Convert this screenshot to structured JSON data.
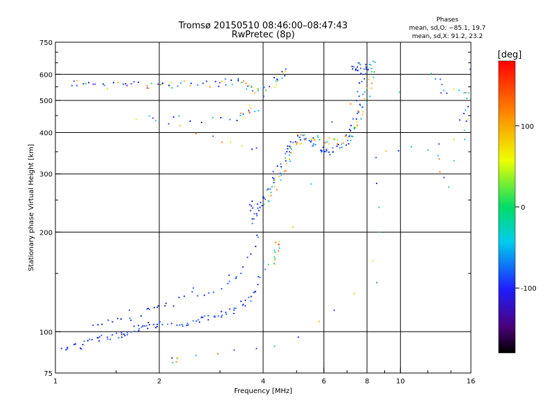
{
  "header": {
    "title_line1": "Tromsø 20150510 08:46:00–08:47:43",
    "title_line2": "RwPretec (8p)",
    "stats_title": "Phases",
    "stats_o": "mean, sd,O: −85.1, 19.7",
    "stats_x": "mean, sd,X:  91.2, 23.2"
  },
  "chart_data": {
    "type": "scatter",
    "xlabel": "Frequency [MHz]",
    "ylabel": "Stationary phase Virtual Height [km]",
    "x_scale": "log",
    "y_scale": "log",
    "xlim": [
      1,
      16
    ],
    "ylim": [
      75,
      750
    ],
    "x_ticks": [
      1,
      2,
      4,
      6,
      8,
      10,
      16
    ],
    "x_tick_labels": [
      "1",
      "2",
      "4",
      "6",
      "8",
      "10",
      "16"
    ],
    "y_ticks": [
      75,
      100,
      200,
      300,
      400,
      500,
      600,
      750
    ],
    "y_tick_labels": [
      "75",
      "100",
      "200",
      "300",
      "400",
      "500",
      "600",
      "750"
    ],
    "grid": true,
    "colorbar": {
      "label": "[deg]",
      "range": [
        -180,
        180
      ],
      "ticks": [
        100,
        0,
        -100
      ],
      "tick_labels": [
        "100",
        "0",
        "-100"
      ]
    },
    "colors": {
      "ordinary_trace": "#1f3fe0",
      "extraordinary_trace": "#e6e600"
    },
    "series": [
      {
        "trace": "O",
        "phase_mean": -85.1,
        "points": [
          [
            1.0,
            89
          ],
          [
            1.1,
            90
          ],
          [
            1.2,
            92
          ],
          [
            1.3,
            95
          ],
          [
            1.4,
            96
          ],
          [
            1.5,
            98
          ],
          [
            1.6,
            100
          ],
          [
            1.7,
            102
          ],
          [
            1.8,
            103
          ],
          [
            1.9,
            105
          ],
          [
            2.0,
            106
          ],
          [
            2.2,
            106
          ],
          [
            2.4,
            107
          ],
          [
            2.6,
            109
          ],
          [
            2.8,
            110
          ],
          [
            3.0,
            112
          ],
          [
            3.2,
            115
          ],
          [
            3.4,
            120
          ],
          [
            3.6,
            125
          ],
          [
            3.8,
            135
          ],
          [
            4.0,
            160
          ],
          [
            1.3,
            105
          ],
          [
            1.5,
            108
          ],
          [
            1.8,
            115
          ],
          [
            2.0,
            118
          ],
          [
            2.5,
            130
          ],
          [
            3.0,
            135
          ],
          [
            3.5,
            150
          ],
          [
            3.8,
            190
          ],
          [
            3.65,
            250
          ],
          [
            3.75,
            225
          ],
          [
            3.9,
            235
          ],
          [
            4.0,
            255
          ],
          [
            4.2,
            280
          ],
          [
            4.4,
            310
          ],
          [
            4.6,
            340
          ],
          [
            4.8,
            365
          ],
          [
            5.0,
            380
          ],
          [
            5.2,
            390
          ],
          [
            5.5,
            375
          ],
          [
            5.8,
            360
          ],
          [
            6.0,
            352
          ],
          [
            6.3,
            352
          ],
          [
            6.6,
            360
          ],
          [
            7.0,
            380
          ],
          [
            7.2,
            410
          ],
          [
            7.4,
            460
          ],
          [
            7.6,
            530
          ],
          [
            7.8,
            600
          ],
          [
            8.0,
            630
          ],
          [
            7.3,
            650
          ],
          [
            7.5,
            620
          ]
        ]
      },
      {
        "trace": "X",
        "phase_mean": 91.2,
        "points": [
          [
            4.0,
            240
          ],
          [
            4.2,
            265
          ],
          [
            4.4,
            290
          ],
          [
            4.6,
            320
          ],
          [
            4.8,
            350
          ],
          [
            5.0,
            375
          ],
          [
            5.3,
            390
          ],
          [
            5.6,
            385
          ],
          [
            6.0,
            380
          ],
          [
            6.5,
            375
          ],
          [
            7.0,
            385
          ],
          [
            7.3,
            410
          ],
          [
            7.6,
            450
          ],
          [
            7.9,
            500
          ],
          [
            8.1,
            560
          ],
          [
            8.2,
            620
          ],
          [
            8.3,
            660
          ],
          [
            4.2,
            160
          ],
          [
            4.3,
            170
          ],
          [
            4.4,
            185
          ]
        ]
      },
      {
        "trace": "scatter",
        "points": [
          [
            1.1,
            570
          ],
          [
            1.2,
            560
          ],
          [
            1.4,
            555
          ],
          [
            1.6,
            570
          ],
          [
            1.8,
            560
          ],
          [
            2.0,
            550
          ],
          [
            2.2,
            560
          ],
          [
            2.5,
            565
          ],
          [
            2.8,
            560
          ],
          [
            3.1,
            570
          ],
          [
            3.4,
            575
          ],
          [
            3.6,
            560
          ],
          [
            3.7,
            545
          ],
          [
            3.9,
            540
          ],
          [
            4.3,
            555
          ],
          [
            4.5,
            600
          ],
          [
            4.6,
            620
          ],
          [
            3.5,
            460
          ],
          [
            3.8,
            470
          ],
          [
            3.4,
            440
          ],
          [
            2.5,
            440
          ],
          [
            1.7,
            450
          ],
          [
            2.8,
            390
          ],
          [
            3.9,
            355
          ],
          [
            12.5,
            600
          ],
          [
            13.3,
            540
          ],
          [
            15.6,
            520
          ],
          [
            15.3,
            390
          ],
          [
            15.8,
            610
          ],
          [
            13.5,
            280
          ],
          [
            12.7,
            365
          ],
          [
            8.5,
            345
          ],
          [
            8.4,
            140
          ],
          [
            4.4,
            90
          ],
          [
            2.2,
            82
          ]
        ]
      }
    ]
  }
}
